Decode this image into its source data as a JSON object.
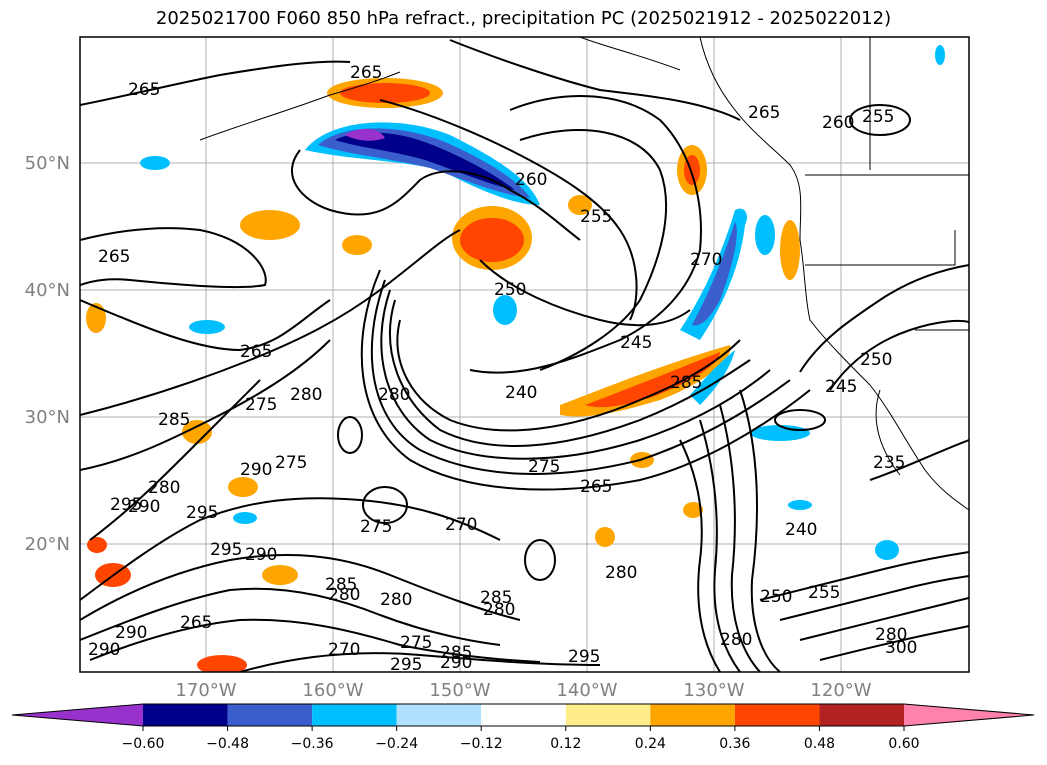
{
  "title": "2025021700 F060 850 hPa refract., precipitation PC (2025021912 - 2025022012)",
  "longitude_labels": [
    "170°W",
    "160°W",
    "150°W",
    "140°W",
    "130°W",
    "120°W"
  ],
  "latitude_labels": [
    "50°N",
    "40°N",
    "30°N",
    "20°N"
  ],
  "colorbar": {
    "colors": [
      "#9932CC",
      "#00008B",
      "#3A5FCD",
      "#00BFFF",
      "#B0E2FF",
      "#FFFFFF",
      "#FFEC8B",
      "#FFA500",
      "#FF4500",
      "#B22222",
      "#FF82AB"
    ],
    "tick_labels": [
      "−0.60",
      "−0.48",
      "−0.36",
      "−0.24",
      "−0.12",
      "0.12",
      "0.24",
      "0.36",
      "0.48",
      "0.60"
    ]
  },
  "contour_labels": [
    "265",
    "265",
    "265",
    "265",
    "260",
    "255",
    "250",
    "245",
    "240",
    "270",
    "265",
    "260",
    "255",
    "250",
    "245",
    "235",
    "240",
    "280",
    "285",
    "275",
    "280",
    "290",
    "295",
    "295",
    "290",
    "280",
    "295",
    "290",
    "275",
    "285",
    "275",
    "270",
    "280",
    "265",
    "275",
    "280",
    "285",
    "280",
    "250",
    "255",
    "280",
    "280",
    "300",
    "290",
    "295",
    "285",
    "290",
    "275",
    "270",
    "290",
    "280",
    "265",
    "285",
    "295"
  ]
}
